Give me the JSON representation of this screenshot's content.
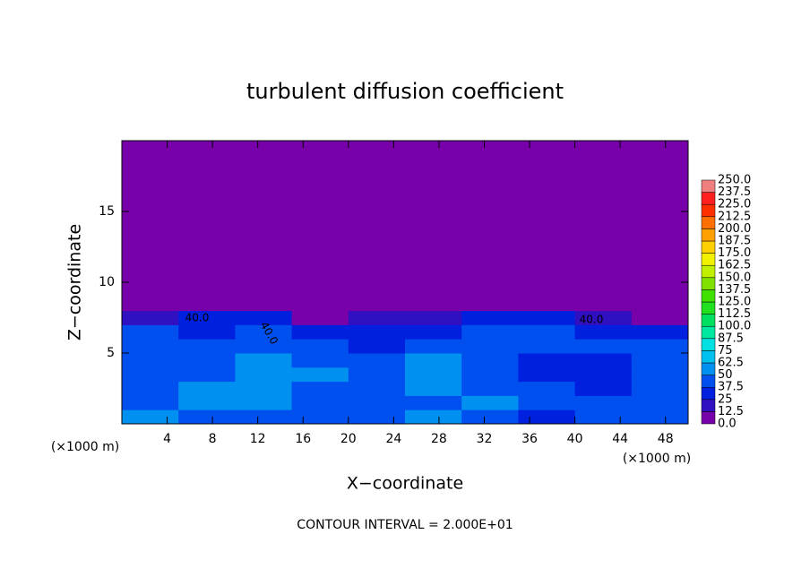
{
  "chart_data": {
    "type": "heatmap",
    "title": "turbulent diffusion coefficient",
    "x_label": "X−coordinate",
    "y_label": "Z−coordinate",
    "y_unit_label": "(×1000 m)",
    "x_unit_label": "(×1000 m)",
    "footer": "CONTOUR INTERVAL = 2.000E+01",
    "contour_labels": [
      "40.0",
      "40.0",
      "40.0"
    ],
    "xlim": [
      0,
      50
    ],
    "ylim": [
      0,
      20
    ],
    "xticks": [
      4,
      8,
      12,
      16,
      20,
      24,
      28,
      32,
      36,
      40,
      44,
      48
    ],
    "yticks": [
      5,
      10,
      15
    ],
    "xbins": [
      0,
      5,
      10,
      15,
      20,
      25,
      30,
      35,
      40,
      45,
      50
    ],
    "ybins": [
      0,
      1,
      2,
      3,
      4,
      5,
      6,
      7,
      8,
      20
    ],
    "z": [
      [
        50,
        45,
        40,
        45,
        40,
        50,
        40,
        30,
        40,
        45
      ],
      [
        45,
        50,
        55,
        40,
        45,
        45,
        50,
        40,
        40,
        45
      ],
      [
        40,
        55,
        50,
        45,
        40,
        50,
        45,
        40,
        35,
        40
      ],
      [
        45,
        40,
        55,
        50,
        45,
        55,
        40,
        35,
        35,
        40
      ],
      [
        40,
        45,
        50,
        45,
        40,
        50,
        45,
        35,
        35,
        45
      ],
      [
        40,
        40,
        45,
        40,
        35,
        45,
        40,
        40,
        40,
        40
      ],
      [
        40,
        35,
        40,
        35,
        35,
        30,
        40,
        40,
        30,
        35
      ],
      [
        20,
        25,
        25,
        10,
        15,
        20,
        30,
        25,
        15,
        10
      ],
      [
        0,
        0,
        0,
        0,
        0,
        0,
        0,
        0,
        0,
        0
      ]
    ],
    "colorbar_levels": [
      {
        "value": 0,
        "label": "0.0"
      },
      12.5,
      25.0,
      37.5,
      50.0,
      62.5,
      75.0,
      87.5,
      {
        "value": 100,
        "label": "100.0"
      },
      112.5,
      {
        "value": 125,
        "label": "125.0"
      },
      137.5,
      {
        "value": 150,
        "label": "150.0"
      },
      162.5,
      {
        "value": 175,
        "label": "175.0"
      },
      187.5,
      {
        "value": 200,
        "label": "200.0"
      },
      212.5,
      {
        "value": 225,
        "label": "225.0"
      },
      237.5,
      {
        "value": 250,
        "label": "250.0"
      }
    ],
    "colorbar_colors": [
      "#7800a8",
      "#3010c0",
      "#0020e0",
      "#0050f0",
      "#0090f0",
      "#00c0f0",
      "#00e0e0",
      "#00e8a0",
      "#00e060",
      "#20e020",
      "#40e000",
      "#80e000",
      "#c0f000",
      "#f0f000",
      "#ffd000",
      "#ffa000",
      "#ff7000",
      "#ff3000",
      "#ff2020",
      "#f08080"
    ]
  }
}
